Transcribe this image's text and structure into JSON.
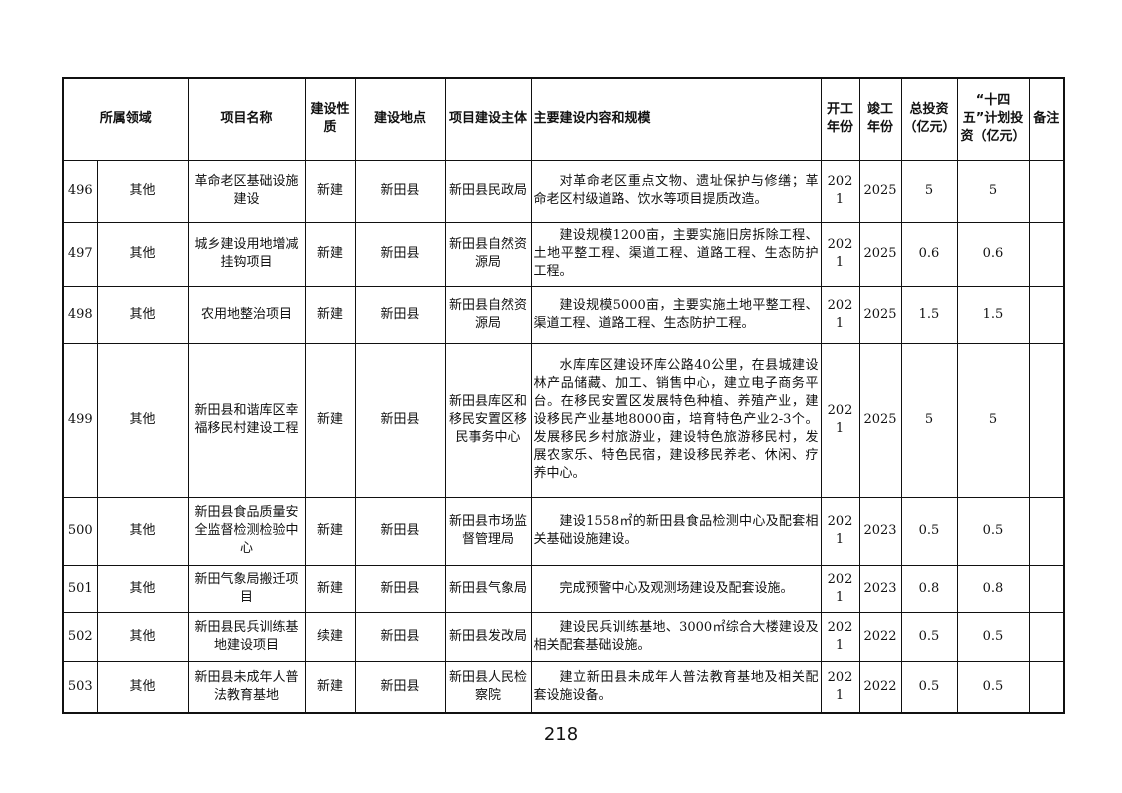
{
  "headers": {
    "domain": "所属领域",
    "name": "项目名称",
    "nature": "建设性质",
    "location": "建设地点",
    "owner": "项目建设主体",
    "content": "主要建设内容和规模",
    "start": "开工年份",
    "end": "竣工年份",
    "total": "总投资（亿元）",
    "plan": "“十四五”计划投资（亿元）",
    "remark": "备注"
  },
  "rows": [
    {
      "no": "496",
      "domain": "其他",
      "name": "革命老区基础设施建设",
      "nature": "新建",
      "location": "新田县",
      "owner": "新田县民政局",
      "content": "对革命老区重点文物、遗址保护与修缮；革命老区村级道路、饮水等项目提质改造。",
      "start": "2021",
      "end": "2025",
      "total": "5",
      "plan": "5",
      "remark": ""
    },
    {
      "no": "497",
      "domain": "其他",
      "name": "城乡建设用地增减挂钩项目",
      "nature": "新建",
      "location": "新田县",
      "owner": "新田县自然资源局",
      "content": "建设规模1200亩，主要实施旧房拆除工程、土地平整工程、渠道工程、道路工程、生态防护工程。",
      "start": "2021",
      "end": "2025",
      "total": "0.6",
      "plan": "0.6",
      "remark": ""
    },
    {
      "no": "498",
      "domain": "其他",
      "name": "农用地整治项目",
      "nature": "新建",
      "location": "新田县",
      "owner": "新田县自然资源局",
      "content": "建设规模5000亩，主要实施土地平整工程、渠道工程、道路工程、生态防护工程。",
      "start": "2021",
      "end": "2025",
      "total": "1.5",
      "plan": "1.5",
      "remark": ""
    },
    {
      "no": "499",
      "domain": "其他",
      "name": "新田县和谐库区幸福移民村建设工程",
      "nature": "新建",
      "location": "新田县",
      "owner": "新田县库区和移民安置区移民事务中心",
      "content": "水库库区建设环库公路40公里，在县城建设林产品储藏、加工、销售中心，建立电子商务平台。在移民安置区发展特色种植、养殖产业，建设移民产业基地8000亩，培育特色产业2-3个。发展移民乡村旅游业，建设特色旅游移民村，发展农家乐、特色民宿，建设移民养老、休闲、疗养中心。",
      "start": "2021",
      "end": "2025",
      "total": "5",
      "plan": "5",
      "remark": ""
    },
    {
      "no": "500",
      "domain": "其他",
      "name": "新田县食品质量安全监督检测检验中心",
      "nature": "新建",
      "location": "新田县",
      "owner": "新田县市场监督管理局",
      "content": "建设1558㎡的新田县食品检测中心及配套相关基础设施建设。",
      "start": "2021",
      "end": "2023",
      "total": "0.5",
      "plan": "0.5",
      "remark": ""
    },
    {
      "no": "501",
      "domain": "其他",
      "name": "新田气象局搬迁项目",
      "nature": "新建",
      "location": "新田县",
      "owner": "新田县气象局",
      "content": "完成预警中心及观测场建设及配套设施。",
      "start": "2021",
      "end": "2023",
      "total": "0.8",
      "plan": "0.8",
      "remark": ""
    },
    {
      "no": "502",
      "domain": "其他",
      "name": "新田县民兵训练基地建设项目",
      "nature": "续建",
      "location": "新田县",
      "owner": "新田县发改局",
      "content": "建设民兵训练基地、3000㎡综合大楼建设及相关配套基础设施。",
      "start": "2021",
      "end": "2022",
      "total": "0.5",
      "plan": "0.5",
      "remark": ""
    },
    {
      "no": "503",
      "domain": "其他",
      "name": "新田县未成年人普法教育基地",
      "nature": "新建",
      "location": "新田县",
      "owner": "新田县人民检察院",
      "content": "建立新田县未成年人普法教育基地及相关配套设施设备。",
      "start": "2021",
      "end": "2022",
      "total": "0.5",
      "plan": "0.5",
      "remark": ""
    }
  ],
  "page_number": "218"
}
